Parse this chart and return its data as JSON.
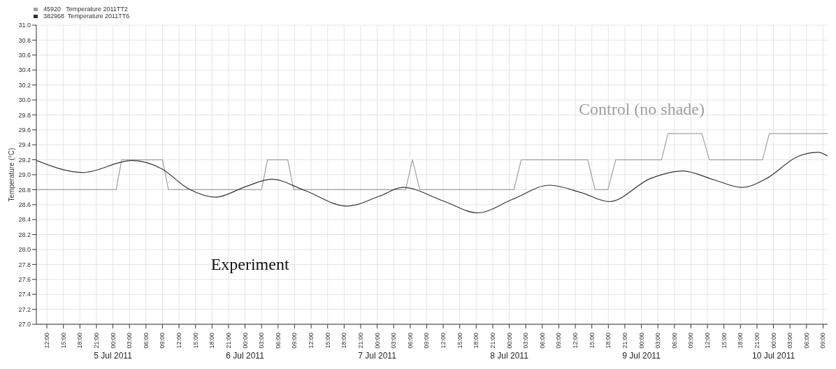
{
  "chart_data": {
    "type": "line",
    "ylabel": "Temperature (°C)",
    "series": [
      {
        "name": "45920   Temperature 2011TT2",
        "color": "#a0a0a0",
        "x": [
          "2011-07-04T10:05",
          "2011-07-05T00:35",
          "2011-07-05T01:35",
          "2011-07-05T09:00",
          "2011-07-05T10:05",
          "2011-07-06T03:00",
          "2011-07-06T04:05",
          "2011-07-06T07:45",
          "2011-07-06T08:50",
          "2011-07-07T05:10",
          "2011-07-07T06:25",
          "2011-07-07T07:45",
          "2011-07-08T00:50",
          "2011-07-08T02:10",
          "2011-07-08T14:15",
          "2011-07-08T15:35",
          "2011-07-08T17:55",
          "2011-07-08T19:20",
          "2011-07-09T03:40",
          "2011-07-09T04:50",
          "2011-07-09T11:00",
          "2011-07-09T12:20",
          "2011-07-09T22:00",
          "2011-07-09T23:15",
          "2011-07-10T09:50"
        ],
        "values": [
          28.8,
          28.8,
          29.2,
          29.2,
          28.8,
          28.8,
          29.2,
          29.2,
          28.8,
          28.8,
          29.2,
          28.8,
          28.8,
          29.2,
          29.2,
          28.8,
          28.8,
          29.2,
          29.2,
          29.55,
          29.55,
          29.2,
          29.2,
          29.55,
          29.55
        ]
      },
      {
        "name": "382968  Temperature 2011TT6",
        "color": "#333333",
        "x": [
          "2011-07-04T10:05",
          "2011-07-04T18:30",
          "2011-07-05T03:30",
          "2011-07-05T08:50",
          "2011-07-05T13:45",
          "2011-07-05T18:40",
          "2011-07-06T00:05",
          "2011-07-06T04:50",
          "2011-07-06T10:50",
          "2011-07-06T18:30",
          "2011-07-07T00:20",
          "2011-07-07T04:40",
          "2011-07-07T12:00",
          "2011-07-07T18:15",
          "2011-07-08T00:35",
          "2011-07-08T07:20",
          "2011-07-08T13:05",
          "2011-07-08T18:10",
          "2011-07-09T01:40",
          "2011-07-09T07:30",
          "2011-07-09T13:15",
          "2011-07-09T18:15",
          "2011-07-09T22:45",
          "2011-07-10T04:20",
          "2011-07-10T08:05",
          "2011-07-10T09:50"
        ],
        "values": [
          29.19,
          29.03,
          29.19,
          29.08,
          28.81,
          28.7,
          28.84,
          28.94,
          28.79,
          28.58,
          28.71,
          28.83,
          28.65,
          28.49,
          28.67,
          28.86,
          28.76,
          28.64,
          28.95,
          29.05,
          28.93,
          28.83,
          28.95,
          29.24,
          29.3,
          29.25
        ]
      }
    ],
    "xlim": [
      "2011-07-04T10:05",
      "2011-07-10T09:50"
    ],
    "xticks": [
      {
        "value": "2011-07-04T12:00",
        "label": "12:00"
      },
      {
        "value": "2011-07-04T15:00",
        "label": "15:00"
      },
      {
        "value": "2011-07-04T18:00",
        "label": "18:00"
      },
      {
        "value": "2011-07-04T21:00",
        "label": "21:00"
      },
      {
        "value": "2011-07-05T00:00",
        "label": "00:00"
      },
      {
        "value": "2011-07-05T03:00",
        "label": "03:00"
      },
      {
        "value": "2011-07-05T06:00",
        "label": "06:00"
      },
      {
        "value": "2011-07-05T09:00",
        "label": "09:00"
      },
      {
        "value": "2011-07-05T12:00",
        "label": "12:00"
      },
      {
        "value": "2011-07-05T15:00",
        "label": "15:00"
      },
      {
        "value": "2011-07-05T18:00",
        "label": "18:00"
      },
      {
        "value": "2011-07-05T21:00",
        "label": "21:00"
      },
      {
        "value": "2011-07-06T00:00",
        "label": "00:00"
      },
      {
        "value": "2011-07-06T03:00",
        "label": "03:00"
      },
      {
        "value": "2011-07-06T06:00",
        "label": "06:00"
      },
      {
        "value": "2011-07-06T09:00",
        "label": "09:00"
      },
      {
        "value": "2011-07-06T12:00",
        "label": "12:00"
      },
      {
        "value": "2011-07-06T15:00",
        "label": "15:00"
      },
      {
        "value": "2011-07-06T18:00",
        "label": "18:00"
      },
      {
        "value": "2011-07-06T21:00",
        "label": "21:00"
      },
      {
        "value": "2011-07-07T00:00",
        "label": "00:00"
      },
      {
        "value": "2011-07-07T03:00",
        "label": "03:00"
      },
      {
        "value": "2011-07-07T06:00",
        "label": "06:00"
      },
      {
        "value": "2011-07-07T09:00",
        "label": "09:00"
      },
      {
        "value": "2011-07-07T12:00",
        "label": "12:00"
      },
      {
        "value": "2011-07-07T15:00",
        "label": "15:00"
      },
      {
        "value": "2011-07-07T18:00",
        "label": "18:00"
      },
      {
        "value": "2011-07-07T21:00",
        "label": "21:00"
      },
      {
        "value": "2011-07-08T00:00",
        "label": "00:00"
      },
      {
        "value": "2011-07-08T03:00",
        "label": "03:00"
      },
      {
        "value": "2011-07-08T06:00",
        "label": "06:00"
      },
      {
        "value": "2011-07-08T09:00",
        "label": "09:00"
      },
      {
        "value": "2011-07-08T12:00",
        "label": "12:00"
      },
      {
        "value": "2011-07-08T15:00",
        "label": "15:00"
      },
      {
        "value": "2011-07-08T18:00",
        "label": "18:00"
      },
      {
        "value": "2011-07-08T21:00",
        "label": "21:00"
      },
      {
        "value": "2011-07-09T00:00",
        "label": "00:00"
      },
      {
        "value": "2011-07-09T03:00",
        "label": "03:00"
      },
      {
        "value": "2011-07-09T06:00",
        "label": "06:00"
      },
      {
        "value": "2011-07-09T09:00",
        "label": "09:00"
      },
      {
        "value": "2011-07-09T12:00",
        "label": "12:00"
      },
      {
        "value": "2011-07-09T15:00",
        "label": "15:00"
      },
      {
        "value": "2011-07-09T18:00",
        "label": "18:00"
      },
      {
        "value": "2011-07-09T21:00",
        "label": "21:00"
      },
      {
        "value": "2011-07-10T00:00",
        "label": "00:00"
      },
      {
        "value": "2011-07-10T03:00",
        "label": "03:00"
      },
      {
        "value": "2011-07-10T06:00",
        "label": "06:00"
      },
      {
        "value": "2011-07-10T09:00",
        "label": "09:00"
      }
    ],
    "ylim": [
      27.0,
      31.0
    ],
    "yticks": [
      {
        "value": 27.0,
        "label": "27.0"
      },
      {
        "value": 27.2,
        "label": "27.2"
      },
      {
        "value": 27.4,
        "label": "27.4"
      },
      {
        "value": 27.6,
        "label": "27.6"
      },
      {
        "value": 27.8,
        "label": "27.8"
      },
      {
        "value": 28.0,
        "label": "28.0"
      },
      {
        "value": 28.2,
        "label": "28.2"
      },
      {
        "value": 28.4,
        "label": "28.4"
      },
      {
        "value": 28.6,
        "label": "28.6"
      },
      {
        "value": 28.8,
        "label": "28.8"
      },
      {
        "value": 29.0,
        "label": "29.0"
      },
      {
        "value": 29.2,
        "label": "29.2"
      },
      {
        "value": 29.4,
        "label": "29.4"
      },
      {
        "value": 29.6,
        "label": "29.6"
      },
      {
        "value": 29.8,
        "label": "29.8"
      },
      {
        "value": 30.0,
        "label": "30.0"
      },
      {
        "value": 30.2,
        "label": "30.2"
      },
      {
        "value": 30.4,
        "label": "30.4"
      },
      {
        "value": 30.6,
        "label": "30.6"
      },
      {
        "value": 30.8,
        "label": "30.8"
      },
      {
        "value": 31.0,
        "label": "31.0"
      }
    ],
    "annotations": [
      "Control (no shade)",
      "Experiment",
      "5 Jul 2011",
      "6 Jul 2011",
      "7 Jul 2011",
      "8 Jul 2011",
      "9 Jul 2011",
      "10 Jul 2011"
    ],
    "grid": true,
    "legend": "top left",
    "marker": "none",
    "line_style": "solid"
  }
}
